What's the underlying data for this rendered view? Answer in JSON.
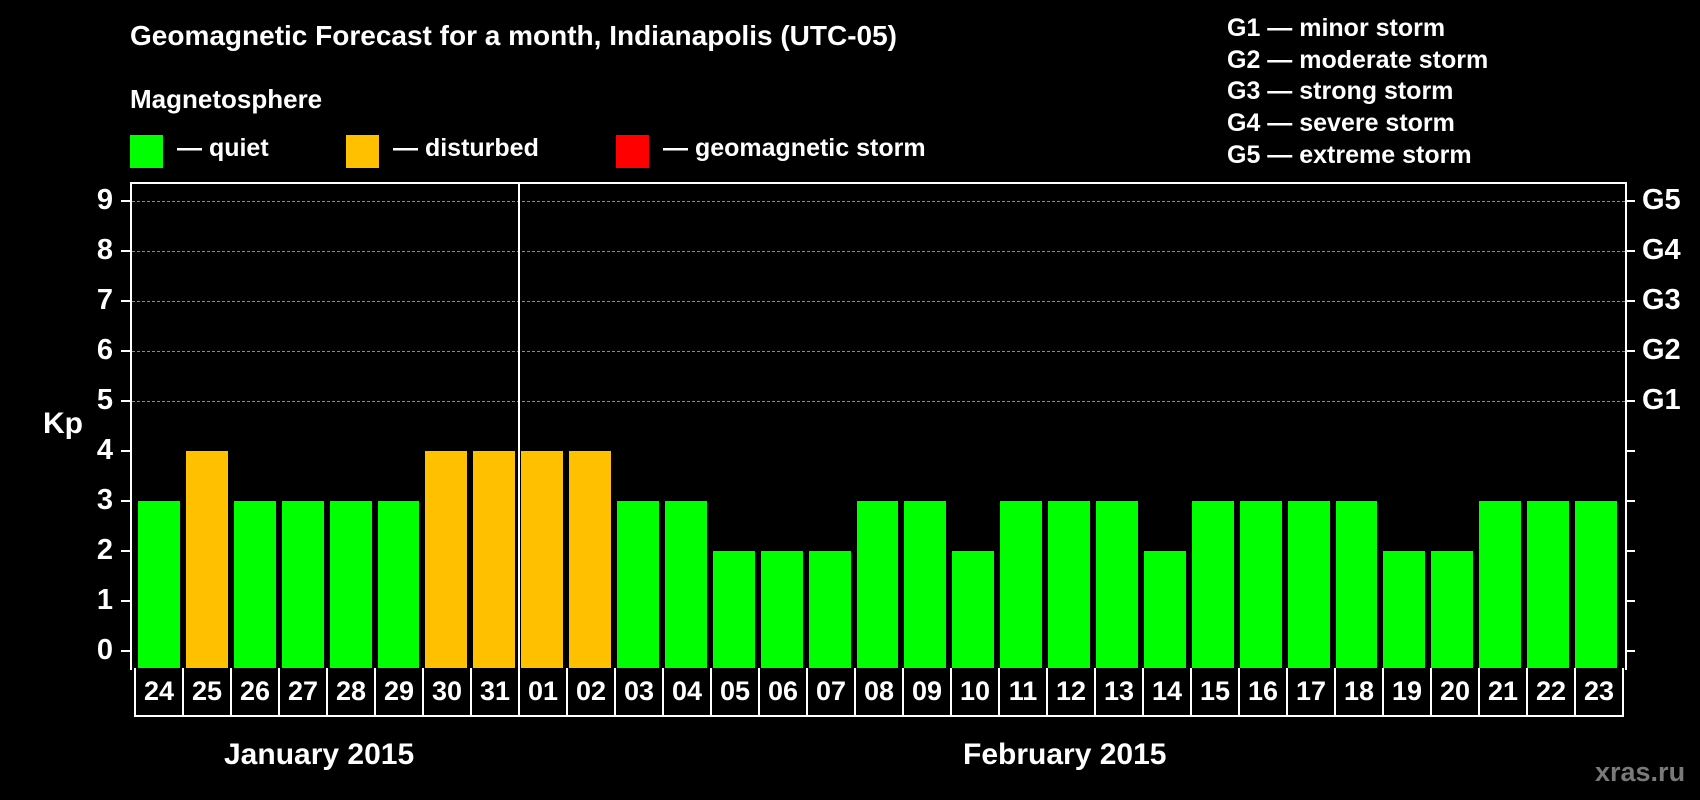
{
  "title": "Geomagnetic Forecast for a month, Indianapolis (UTC-05)",
  "legend": {
    "heading": "Magnetosphere",
    "items": [
      {
        "label": "— quiet",
        "color": "#00ff00"
      },
      {
        "label": "— disturbed",
        "color": "#ffc000"
      },
      {
        "label": "— geomagnetic storm",
        "color": "#ff0000"
      }
    ]
  },
  "storm_scale": [
    "G1 — minor storm",
    "G2 — moderate storm",
    "G3 — strong storm",
    "G4 — severe storm",
    "G5 — extreme storm"
  ],
  "axis": {
    "ylabel": "Kp",
    "yticks": [
      "0",
      "1",
      "2",
      "3",
      "4",
      "5",
      "6",
      "7",
      "8",
      "9"
    ],
    "right_labels": [
      {
        "kp": 5,
        "label": "G1"
      },
      {
        "kp": 6,
        "label": "G2"
      },
      {
        "kp": 7,
        "label": "G3"
      },
      {
        "kp": 8,
        "label": "G4"
      },
      {
        "kp": 9,
        "label": "G5"
      }
    ]
  },
  "months": {
    "left": "January 2015",
    "right": "February 2015"
  },
  "watermark": "xras.ru",
  "chart_data": {
    "type": "bar",
    "title": "Geomagnetic Forecast for a month, Indianapolis (UTC-05)",
    "xlabel": "",
    "ylabel": "Kp",
    "ylim": [
      0,
      9
    ],
    "grid": true,
    "legend_position": "top",
    "categories": [
      "24",
      "25",
      "26",
      "27",
      "28",
      "29",
      "30",
      "31",
      "01",
      "02",
      "03",
      "04",
      "05",
      "06",
      "07",
      "08",
      "09",
      "10",
      "11",
      "12",
      "13",
      "14",
      "15",
      "16",
      "17",
      "18",
      "19",
      "20",
      "21",
      "22",
      "23"
    ],
    "category_months": [
      "January 2015",
      "January 2015",
      "January 2015",
      "January 2015",
      "January 2015",
      "January 2015",
      "January 2015",
      "January 2015",
      "February 2015",
      "February 2015",
      "February 2015",
      "February 2015",
      "February 2015",
      "February 2015",
      "February 2015",
      "February 2015",
      "February 2015",
      "February 2015",
      "February 2015",
      "February 2015",
      "February 2015",
      "February 2015",
      "February 2015",
      "February 2015",
      "February 2015",
      "February 2015",
      "February 2015",
      "February 2015",
      "February 2015",
      "February 2015",
      "February 2015"
    ],
    "values": [
      3,
      4,
      3,
      3,
      3,
      3,
      4,
      4,
      4,
      4,
      3,
      3,
      2,
      2,
      2,
      3,
      3,
      2,
      3,
      3,
      3,
      2,
      3,
      3,
      3,
      3,
      2,
      2,
      3,
      3,
      3
    ],
    "status": [
      "quiet",
      "disturbed",
      "quiet",
      "quiet",
      "quiet",
      "quiet",
      "disturbed",
      "disturbed",
      "disturbed",
      "disturbed",
      "quiet",
      "quiet",
      "quiet",
      "quiet",
      "quiet",
      "quiet",
      "quiet",
      "quiet",
      "quiet",
      "quiet",
      "quiet",
      "quiet",
      "quiet",
      "quiet",
      "quiet",
      "quiet",
      "quiet",
      "quiet",
      "quiet",
      "quiet",
      "quiet"
    ],
    "status_colors": {
      "quiet": "#00ff00",
      "disturbed": "#ffc000",
      "storm": "#ff0000"
    },
    "right_axis": {
      "5": "G1",
      "6": "G2",
      "7": "G3",
      "8": "G4",
      "9": "G5"
    }
  }
}
